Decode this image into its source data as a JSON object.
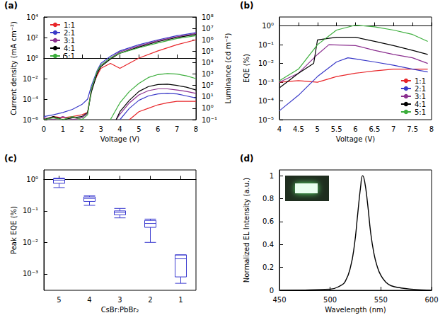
{
  "chart_data": [
    {
      "type": "line",
      "panel": "(a)",
      "xlabel": "Voltage (V)",
      "ylabel": "Current density (mA cm⁻²)",
      "y2label": "Luminance (cd m⁻²)",
      "log": "y",
      "grid": false,
      "legend": "upper left",
      "xlim": [
        0,
        8
      ],
      "xticks": [
        0,
        1,
        2,
        3,
        4,
        5,
        6,
        7,
        8
      ],
      "ylim": [
        1e-06,
        10000
      ],
      "yticks": [
        {
          "value": 1e-06,
          "label": "10⁻⁶"
        },
        {
          "value": 0.0001,
          "label": "10⁻⁴"
        },
        {
          "value": 0.01,
          "label": "10⁻²"
        },
        {
          "value": 1,
          "label": "10⁰"
        },
        {
          "value": 100,
          "label": "10²"
        },
        {
          "value": 10000,
          "label": "10⁴"
        }
      ],
      "y2lim": [
        0.1,
        100000000
      ],
      "y2ticks": [
        {
          "value": 0.1,
          "label": "10⁻¹"
        },
        {
          "value": 1,
          "label": "10⁰"
        },
        {
          "value": 10,
          "label": "10¹"
        },
        {
          "value": 100,
          "label": "10²"
        },
        {
          "value": 1000,
          "label": "10³"
        },
        {
          "value": 10000,
          "label": "10⁴"
        },
        {
          "value": 100000,
          "label": "10⁵"
        },
        {
          "value": 1000000,
          "label": "10⁶"
        },
        {
          "value": 10000000,
          "label": "10⁷"
        },
        {
          "value": 100000000,
          "label": "10⁸"
        }
      ],
      "series": [
        {
          "name": "1:1",
          "color": "#e8262a",
          "x": [
            0,
            0.5,
            1,
            1.5,
            2,
            2.3,
            2.5,
            2.8,
            3,
            3.5,
            4,
            5,
            6,
            7,
            8
          ],
          "values": [
            1e-06,
            2e-06,
            1.5e-06,
            2e-06,
            3e-06,
            5e-06,
            0.001,
            0.02,
            0.1,
            0.3,
            0.1,
            1,
            5,
            20,
            60
          ]
        },
        {
          "name": "2:1",
          "color": "#3a3ac8",
          "x": [
            0,
            0.5,
            1,
            1.5,
            2,
            2.3,
            2.5,
            2.8,
            3,
            3.5,
            4,
            5,
            6,
            7,
            8
          ],
          "values": [
            2e-06,
            3e-06,
            5e-06,
            1e-05,
            3e-05,
            0.0001,
            0.002,
            0.06,
            0.3,
            1.5,
            5,
            20,
            60,
            150,
            300
          ]
        },
        {
          "name": "3:1",
          "color": "#8b2f8f",
          "x": [
            0,
            0.5,
            1,
            1.5,
            2,
            2.3,
            2.5,
            2.8,
            3,
            3.5,
            4,
            5,
            6,
            7,
            8
          ],
          "values": [
            1.5e-06,
            1e-06,
            2e-06,
            1e-06,
            1.5e-06,
            4e-06,
            0.0008,
            0.04,
            0.2,
            1,
            4,
            15,
            50,
            120,
            250
          ]
        },
        {
          "name": "4:1",
          "color": "#000000",
          "x": [
            0,
            0.5,
            1,
            1.5,
            2,
            2.3,
            2.5,
            2.8,
            3,
            3.5,
            4,
            5,
            6,
            7,
            8
          ],
          "values": [
            1e-06,
            2e-06,
            1e-06,
            1.5e-06,
            2e-06,
            5e-06,
            0.0005,
            0.03,
            0.15,
            0.8,
            3,
            12,
            40,
            100,
            200
          ]
        },
        {
          "name": "5:1",
          "color": "#3cae3c",
          "x": [
            0,
            0.5,
            1,
            1.5,
            2,
            2.3,
            2.5,
            2.8,
            3,
            3.5,
            4,
            5,
            6,
            7,
            8
          ],
          "values": [
            1e-06,
            1.5e-06,
            1e-06,
            2e-06,
            1e-06,
            3e-06,
            0.001,
            0.05,
            0.2,
            1,
            3,
            10,
            30,
            80,
            150
          ]
        },
        {
          "name": "1:1",
          "color": "#e8262a",
          "axis": "y2",
          "x": [
            4.5,
            5,
            5.5,
            6,
            6.5,
            7,
            7.5,
            8
          ],
          "values": [
            0.1,
            0.5,
            1,
            2,
            3,
            4,
            4,
            4
          ]
        },
        {
          "name": "2:1",
          "color": "#3a3ac8",
          "axis": "y2",
          "x": [
            4,
            4.5,
            5,
            5.5,
            6,
            6.5,
            7,
            7.5,
            8
          ],
          "values": [
            0.1,
            1,
            5,
            12,
            18,
            20,
            18,
            12,
            8
          ]
        },
        {
          "name": "3:1",
          "color": "#8b2f8f",
          "axis": "y2",
          "x": [
            3.8,
            4,
            4.5,
            5,
            5.5,
            6,
            6.5,
            7,
            7.5,
            8
          ],
          "values": [
            0.1,
            0.3,
            3,
            15,
            35,
            50,
            50,
            40,
            30,
            20
          ]
        },
        {
          "name": "4:1",
          "color": "#000000",
          "axis": "y2",
          "x": [
            3.8,
            4,
            4.5,
            5,
            5.5,
            6,
            6.5,
            7,
            7.5,
            8
          ],
          "values": [
            0.1,
            0.5,
            5,
            30,
            80,
            120,
            130,
            100,
            70,
            40
          ]
        },
        {
          "name": "5:1",
          "color": "#3cae3c",
          "axis": "y2",
          "x": [
            3.5,
            4,
            4.5,
            5,
            5.5,
            6,
            6.5,
            7,
            7.5,
            8
          ],
          "values": [
            0.1,
            3,
            30,
            150,
            500,
            900,
            1100,
            1000,
            700,
            400
          ]
        }
      ]
    },
    {
      "type": "line",
      "panel": "(b)",
      "xlabel": "Voltage (V)",
      "ylabel": "EQE (%)",
      "log": "y",
      "grid": false,
      "legend": "lower right",
      "xlim": [
        4,
        8
      ],
      "xticks": [
        4,
        4.5,
        5,
        5.5,
        6,
        6.5,
        7,
        7.5,
        8
      ],
      "ylim": [
        1e-05,
        3
      ],
      "yticks": [
        {
          "value": 1e-05,
          "label": "10⁻⁵"
        },
        {
          "value": 0.0001,
          "label": "10⁻⁴"
        },
        {
          "value": 0.001,
          "label": "10⁻³"
        },
        {
          "value": 0.01,
          "label": "10⁻²"
        },
        {
          "value": 0.1,
          "label": "10⁻¹"
        },
        {
          "value": 1,
          "label": "10⁰"
        }
      ],
      "series": [
        {
          "name": "1:1",
          "color": "#e8262a",
          "x": [
            4,
            4.5,
            5,
            5.5,
            6,
            6.5,
            7,
            7.5,
            7.9
          ],
          "values": [
            0.001,
            0.0012,
            0.001,
            0.002,
            0.003,
            0.004,
            0.005,
            0.005,
            0.005
          ]
        },
        {
          "name": "2:1",
          "color": "#3a3ac8",
          "x": [
            4,
            4.5,
            5,
            5.5,
            5.8,
            6.5,
            7,
            7.5,
            7.9
          ],
          "values": [
            3e-05,
            0.0002,
            0.002,
            0.012,
            0.02,
            0.012,
            0.008,
            0.005,
            0.0035
          ]
        },
        {
          "name": "3:1",
          "color": "#8b2f8f",
          "x": [
            4,
            4.5,
            5,
            5.3,
            6,
            6.5,
            7,
            7.5,
            7.9
          ],
          "values": [
            0.001,
            0.003,
            0.03,
            0.1,
            0.09,
            0.05,
            0.03,
            0.02,
            0.01
          ]
        },
        {
          "name": "4:1",
          "color": "#000000",
          "x": [
            4,
            4.5,
            4.9,
            5,
            5.5,
            6,
            6.5,
            7,
            7.5,
            7.9
          ],
          "values": [
            0.0005,
            0.003,
            0.01,
            0.18,
            0.25,
            0.25,
            0.15,
            0.09,
            0.05,
            0.03
          ]
        },
        {
          "name": "5:1",
          "color": "#3cae3c",
          "x": [
            4,
            4.5,
            5,
            5.5,
            6,
            6.5,
            7,
            7.5,
            7.9
          ],
          "values": [
            0.0012,
            0.005,
            0.1,
            0.6,
            1.1,
            0.9,
            0.6,
            0.35,
            0.15
          ]
        }
      ]
    },
    {
      "type": "boxplot",
      "panel": "(c)",
      "xlabel": "CsBr:PbBr₂",
      "ylabel": "Peak EQE (%)",
      "log": "y",
      "grid": false,
      "color": "#3b3bd0",
      "categories": [
        "5",
        "4",
        "3",
        "2",
        "1"
      ],
      "values": [
        [
          0.55,
          0.75,
          0.95,
          1.05,
          1.1
        ],
        [
          0.15,
          0.2,
          0.25,
          0.28,
          0.3
        ],
        [
          0.06,
          0.075,
          0.09,
          0.1,
          0.12
        ],
        [
          0.01,
          0.03,
          0.04,
          0.05,
          0.055
        ],
        [
          0.0005,
          0.0008,
          0.003,
          0.004,
          0.004
        ]
      ],
      "ylim": [
        0.0003,
        2
      ],
      "yticks": [
        {
          "value": 0.001,
          "label": "10⁻³"
        },
        {
          "value": 0.01,
          "label": "10⁻²"
        },
        {
          "value": 0.1,
          "label": "10⁻¹"
        },
        {
          "value": 1,
          "label": "10⁰"
        }
      ]
    },
    {
      "type": "line",
      "panel": "(d)",
      "xlabel": "Wavelength (nm)",
      "ylabel": "Normalized EL Intensity (a.u.)",
      "grid": false,
      "color": "#000000",
      "xlim": [
        450,
        600
      ],
      "xticks": [
        450,
        500,
        550,
        600
      ],
      "ylim": [
        0,
        1.05
      ],
      "yticks": [
        0,
        0.2,
        0.4,
        0.6,
        0.8,
        1
      ],
      "x": [
        450,
        500,
        510,
        515,
        520,
        524,
        527,
        530,
        532,
        534,
        537,
        540,
        543,
        546,
        550,
        555,
        560,
        570,
        580,
        600
      ],
      "values": [
        0,
        0.01,
        0.04,
        0.08,
        0.2,
        0.4,
        0.65,
        0.9,
        1,
        0.95,
        0.75,
        0.5,
        0.33,
        0.22,
        0.13,
        0.07,
        0.04,
        0.02,
        0.01,
        0
      ]
    }
  ]
}
